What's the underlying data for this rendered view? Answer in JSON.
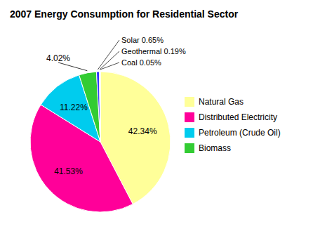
{
  "chart_data": {
    "type": "pie",
    "title": "2007 Energy Consumption for Residential Sector",
    "categories": [
      "Natural Gas",
      "Distributed Electricity",
      "Petroleum (Crude Oil)",
      "Biomass",
      null,
      null,
      null
    ],
    "values": [
      42.34,
      41.53,
      11.22,
      4.02,
      0.65,
      0.19,
      0.05
    ],
    "value_labels": [
      "42.34%",
      "41.53%",
      "11.22%",
      "4.02%",
      "Solar 0.65%",
      "Geothermal 0.19%",
      "Coal 0.05%"
    ],
    "colors": [
      "#FFFF99",
      "#FF0099",
      "#00CCEE",
      "#33CC33",
      "#3333FF",
      "#663300",
      "#999999"
    ],
    "data_labels": true,
    "legend": "right"
  }
}
